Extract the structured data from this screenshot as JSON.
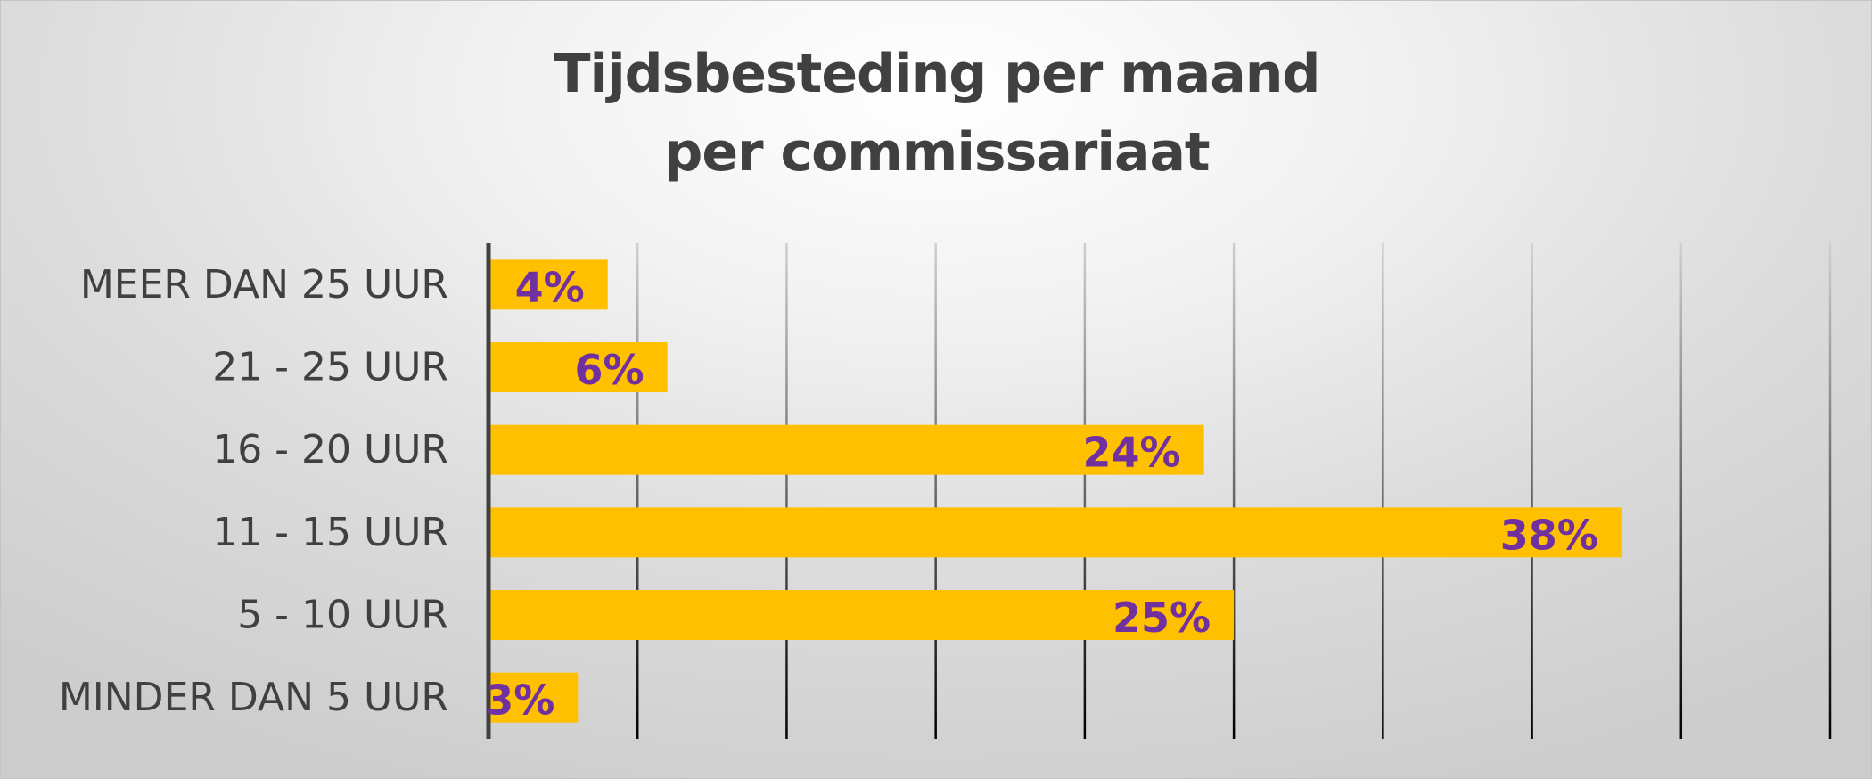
{
  "chart_data": {
    "type": "bar",
    "orientation": "horizontal",
    "title": "Tijdsbesteding per maand per commissariaat",
    "title_lines": [
      "Tijdsbesteding per maand",
      "per commissariaat"
    ],
    "categories": [
      "MEER DAN 25 UUR",
      "21 - 25 UUR",
      "16 - 20 UUR",
      "11 - 15 UUR",
      "5 - 10 UUR",
      "MINDER DAN 5 UUR"
    ],
    "values": [
      4,
      6,
      24,
      38,
      25,
      3
    ],
    "value_labels": [
      "4%",
      "6%",
      "24%",
      "38%",
      "25%",
      "3%"
    ],
    "unit": "%",
    "xlim": [
      0,
      45
    ],
    "gridlines": [
      5,
      10,
      15,
      20,
      25,
      30,
      35,
      40,
      45
    ],
    "grid": true,
    "legend": "none",
    "colors": {
      "bar": "#ffc000",
      "data_label": "#7030a0",
      "text": "#404040",
      "axis": "#404040",
      "grid_top": "#d0d0d0",
      "grid_bottom": "#000000"
    }
  }
}
